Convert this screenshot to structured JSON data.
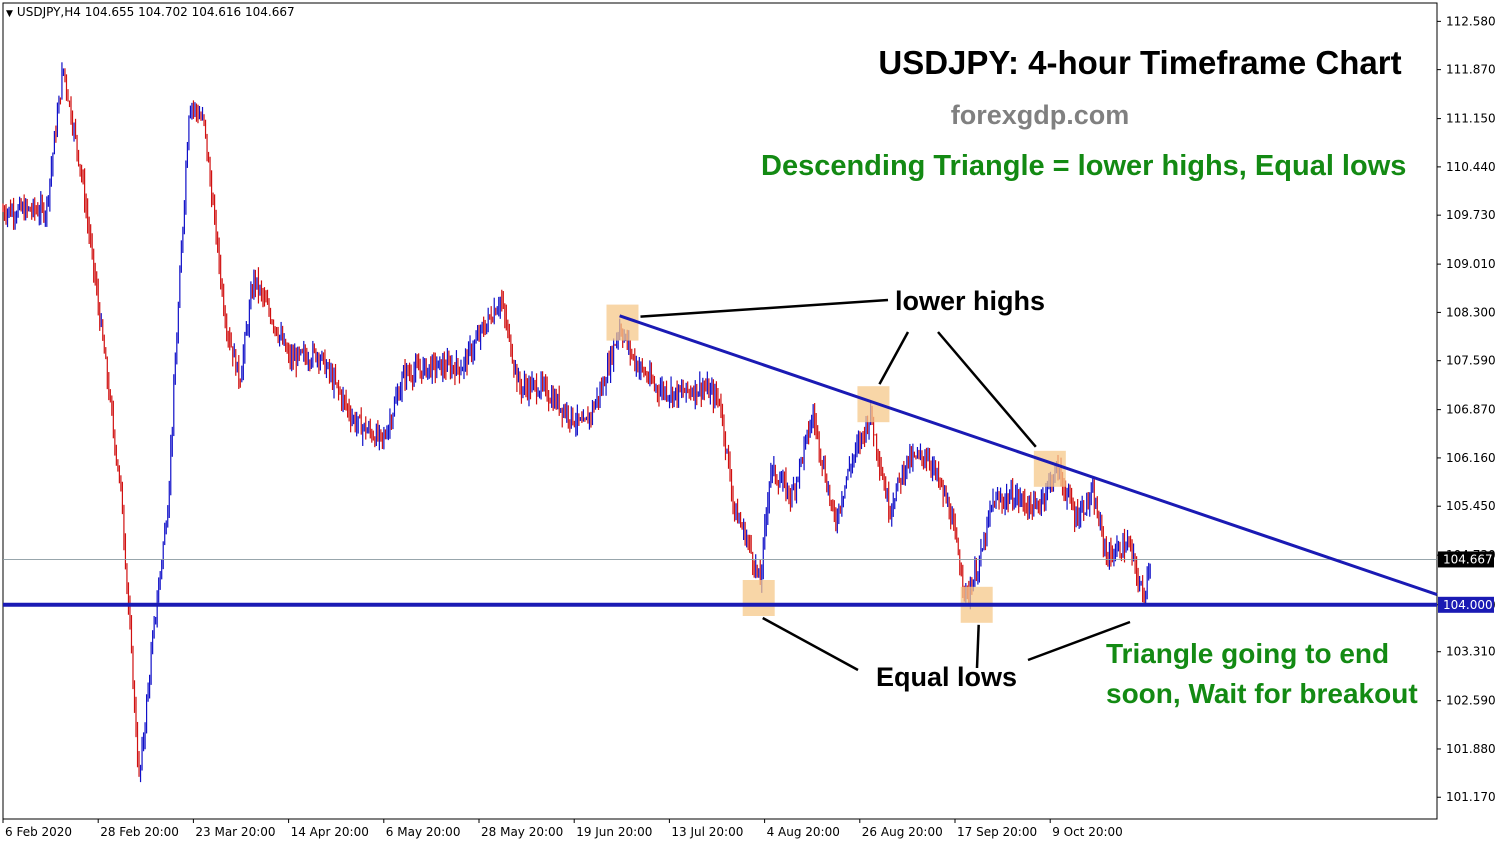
{
  "header": {
    "symbol_info": "USDJPY,H4  104.655 104.702 104.616 104.667"
  },
  "annotations": {
    "title": "USDJPY: 4-hour Timeframe Chart",
    "website": "forexgdp.com",
    "subtitle": "Descending Triangle = lower highs, Equal lows",
    "lower_highs_label": "lower highs",
    "equal_lows_label": "Equal lows",
    "note_line1": "Triangle going to end",
    "note_line2": "soon, Wait for breakout"
  },
  "colors": {
    "bull_candle": "#1010c8",
    "bear_candle": "#d01010",
    "trendline": "#1a1ab4",
    "support_line": "#1a1ab4",
    "highlight_box": "#f5c88a",
    "green_text": "#138a13",
    "current_price_line": "#8a9aa0"
  },
  "chart_data": {
    "type": "candlestick",
    "symbol": "USDJPY",
    "timeframe": "H4",
    "current_price": 104.667,
    "support_level": 104.0,
    "ylim": [
      100.85,
      112.85
    ],
    "y_ticks": [
      "112.580",
      "111.870",
      "111.150",
      "110.440",
      "109.730",
      "109.010",
      "108.300",
      "107.590",
      "106.870",
      "106.160",
      "105.450",
      "104.730",
      "104.000",
      "103.310",
      "102.590",
      "101.880",
      "101.170"
    ],
    "x_ticks": [
      "6 Feb 2020",
      "28 Feb 20:00",
      "23 Mar 20:00",
      "14 Apr 20:00",
      "6 May 20:00",
      "28 May 20:00",
      "19 Jun 20:00",
      "13 Jul 20:00",
      "4 Aug 20:00",
      "26 Aug 20:00",
      "17 Sep 20:00",
      "9 Oct 20:00"
    ],
    "price_path": [
      {
        "t": 0,
        "p": 109.8
      },
      {
        "t": 0.03,
        "p": 109.8
      },
      {
        "t": 0.042,
        "p": 111.9
      },
      {
        "t": 0.055,
        "p": 110.3
      },
      {
        "t": 0.07,
        "p": 107.8
      },
      {
        "t": 0.083,
        "p": 105.5
      },
      {
        "t": 0.095,
        "p": 101.4
      },
      {
        "t": 0.105,
        "p": 103.6
      },
      {
        "t": 0.115,
        "p": 105.5
      },
      {
        "t": 0.13,
        "p": 111.4
      },
      {
        "t": 0.14,
        "p": 111.1
      },
      {
        "t": 0.155,
        "p": 108.2
      },
      {
        "t": 0.165,
        "p": 107.3
      },
      {
        "t": 0.175,
        "p": 108.8
      },
      {
        "t": 0.19,
        "p": 108.1
      },
      {
        "t": 0.2,
        "p": 107.6
      },
      {
        "t": 0.22,
        "p": 107.7
      },
      {
        "t": 0.245,
        "p": 106.7
      },
      {
        "t": 0.265,
        "p": 106.4
      },
      {
        "t": 0.28,
        "p": 107.4
      },
      {
        "t": 0.3,
        "p": 107.5
      },
      {
        "t": 0.32,
        "p": 107.5
      },
      {
        "t": 0.347,
        "p": 108.5
      },
      {
        "t": 0.36,
        "p": 107.2
      },
      {
        "t": 0.375,
        "p": 107.2
      },
      {
        "t": 0.39,
        "p": 106.9
      },
      {
        "t": 0.405,
        "p": 106.6
      },
      {
        "t": 0.418,
        "p": 107.2
      },
      {
        "t": 0.43,
        "p": 108.1
      },
      {
        "t": 0.44,
        "p": 107.6
      },
      {
        "t": 0.455,
        "p": 107.2
      },
      {
        "t": 0.47,
        "p": 107.1
      },
      {
        "t": 0.488,
        "p": 107.2
      },
      {
        "t": 0.5,
        "p": 107.0
      },
      {
        "t": 0.51,
        "p": 105.4
      },
      {
        "t": 0.52,
        "p": 104.9
      },
      {
        "t": 0.528,
        "p": 104.3
      },
      {
        "t": 0.535,
        "p": 106.0
      },
      {
        "t": 0.55,
        "p": 105.6
      },
      {
        "t": 0.565,
        "p": 106.8
      },
      {
        "t": 0.58,
        "p": 105.2
      },
      {
        "t": 0.59,
        "p": 106.0
      },
      {
        "t": 0.605,
        "p": 106.8
      },
      {
        "t": 0.618,
        "p": 105.4
      },
      {
        "t": 0.63,
        "p": 106.1
      },
      {
        "t": 0.645,
        "p": 106.2
      },
      {
        "t": 0.66,
        "p": 105.4
      },
      {
        "t": 0.672,
        "p": 104.1
      },
      {
        "t": 0.682,
        "p": 104.7
      },
      {
        "t": 0.69,
        "p": 105.5
      },
      {
        "t": 0.705,
        "p": 105.6
      },
      {
        "t": 0.72,
        "p": 105.4
      },
      {
        "t": 0.735,
        "p": 106.0
      },
      {
        "t": 0.748,
        "p": 105.3
      },
      {
        "t": 0.76,
        "p": 105.6
      },
      {
        "t": 0.77,
        "p": 104.7
      },
      {
        "t": 0.785,
        "p": 104.9
      },
      {
        "t": 0.795,
        "p": 104.1
      },
      {
        "t": 0.8,
        "p": 104.67
      }
    ],
    "trendline": {
      "from": {
        "t": 0.43,
        "p": 108.25
      },
      "to": {
        "t": 1.0,
        "p": 104.15
      }
    },
    "highlight_points": [
      {
        "label": "lower highs",
        "t": 0.432,
        "p": 108.15
      },
      {
        "label": "lower highs",
        "t": 0.607,
        "p": 106.95
      },
      {
        "label": "lower highs",
        "t": 0.73,
        "p": 106.0
      },
      {
        "label": "Equal lows",
        "t": 0.527,
        "p": 104.1
      },
      {
        "label": "Equal lows",
        "t": 0.679,
        "p": 104.0
      }
    ]
  }
}
